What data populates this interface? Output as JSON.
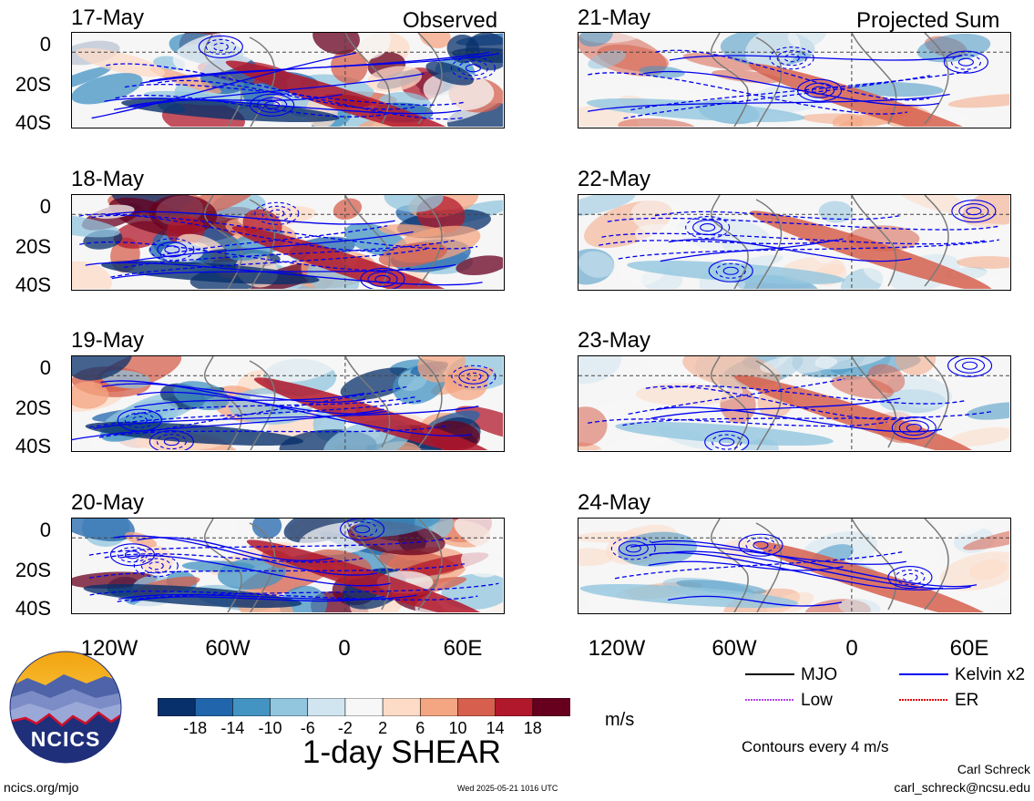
{
  "panels": {
    "left_heading": "Observed",
    "right_heading": "Projected Sum",
    "observed_dates": [
      "17-May",
      "18-May",
      "19-May",
      "20-May"
    ],
    "projected_dates": [
      "21-May",
      "22-May",
      "23-May",
      "24-May"
    ]
  },
  "axes": {
    "lat_labels": [
      "0",
      "20S",
      "40S"
    ],
    "lon_labels": [
      "120W",
      "60W",
      "0",
      "60E"
    ]
  },
  "colorbar": {
    "ticks": [
      "-18",
      "-14",
      "-10",
      "-6",
      "-2",
      "2",
      "6",
      "10",
      "14",
      "18"
    ],
    "colors": [
      "#08306b",
      "#2166ac",
      "#4393c3",
      "#92c5de",
      "#d1e5f0",
      "#f7f7f7",
      "#fddbc7",
      "#f4a582",
      "#d6604d",
      "#b2182b",
      "#67001f"
    ],
    "units": "m/s",
    "title": "1-day SHEAR"
  },
  "legend": {
    "mjo": "MJO",
    "low": "Low",
    "kelvin": "Kelvin x2",
    "er": "ER",
    "contours_note": "Contours every 4 m/s",
    "colors": {
      "mjo": "#000000",
      "low": "#b344e8",
      "kelvin": "#0000ee",
      "er": "#dd0000"
    }
  },
  "logo": {
    "text": "NCICS"
  },
  "footer": {
    "url": "ncics.org/mjo",
    "timestamp": "Wed 2025-05-21 1016 UTC",
    "author": "Carl Schreck",
    "email": "carl_schreck@ncsu.edu"
  }
}
